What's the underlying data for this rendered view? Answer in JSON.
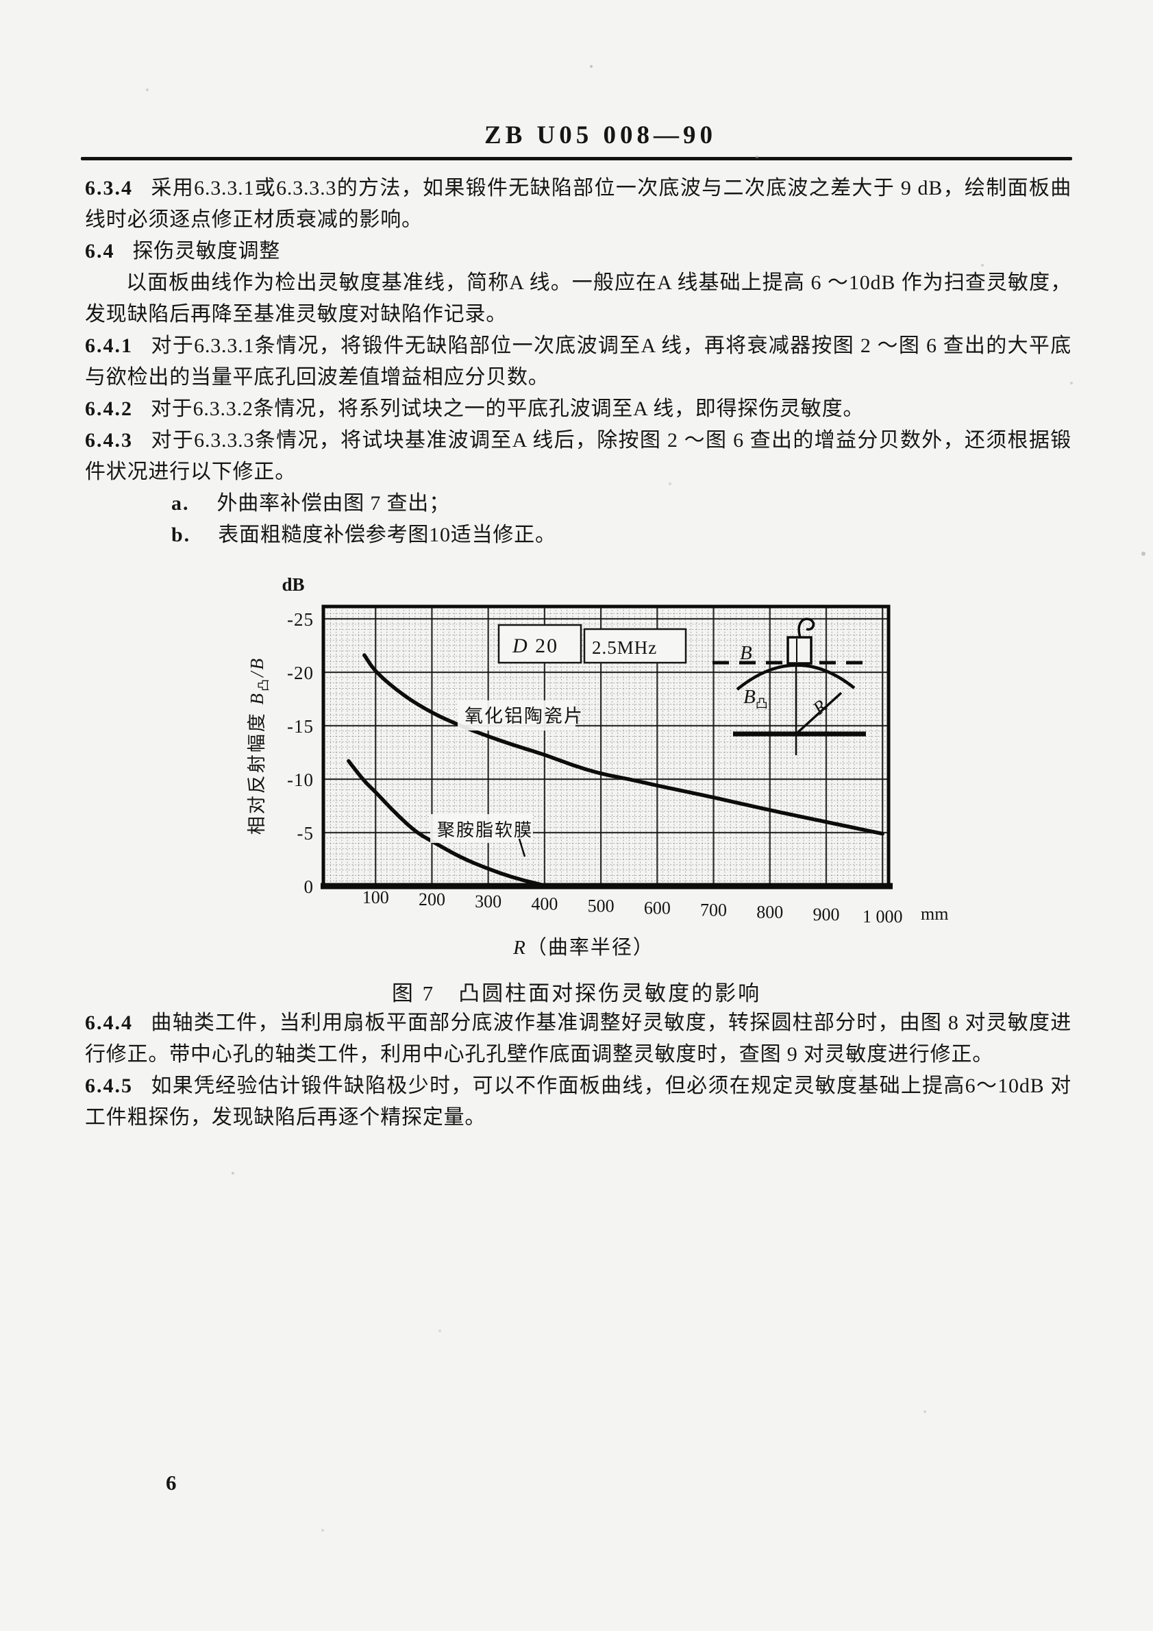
{
  "page": {
    "header_title": "ZB U05 008—90",
    "page_number": "6"
  },
  "colors": {
    "paper": "#f4f4f3",
    "ink": "#161616"
  },
  "content": {
    "s634": {
      "num": "6.3.4",
      "text": "采用6.3.3.1或6.3.3.3的方法，如果锻件无缺陷部位一次底波与二次底波之差大于 9 dB，绘制面板曲线时必须逐点修正材质衰减的影响。"
    },
    "s64": {
      "num": "6.4",
      "text": "探伤灵敏度调整"
    },
    "s64_intro": {
      "text": "以面板曲线作为检出灵敏度基准线，简称A 线。一般应在A 线基础上提高 6 ～10dB 作为扫查灵敏度，发现缺陷后再降至基准灵敏度对缺陷作记录。"
    },
    "s641": {
      "num": "6.4.1",
      "text": "对于6.3.3.1条情况，将锻件无缺陷部位一次底波调至A 线，再将衰减器按图 2 ～图 6 查出的大平底与欲检出的当量平底孔回波差值增益相应分贝数。"
    },
    "s642": {
      "num": "6.4.2",
      "text": "对于6.3.3.2条情况，将系列试块之一的平底孔波调至A 线，即得探伤灵敏度。"
    },
    "s643": {
      "num": "6.4.3",
      "text": "对于6.3.3.3条情况，将试块基准波调至A 线后，除按图 2 ～图 6 查出的增益分贝数外，还须根据锻件状况进行以下修正。"
    },
    "item_a": {
      "num": "a.",
      "text": "外曲率补偿由图 7 查出；"
    },
    "item_b": {
      "num": "b.",
      "text": "表面粗糙度补偿参考图10适当修正。"
    },
    "s644": {
      "num": "6.4.4",
      "text": "曲轴类工件，当利用扇板平面部分底波作基准调整好灵敏度，转探圆柱部分时，由图 8 对灵敏度进行修正。带中心孔的轴类工件，利用中心孔孔壁作底面调整灵敏度时，查图 9 对灵敏度进行修正。"
    },
    "s645": {
      "num": "6.4.5",
      "text": "如果凭经验估计锻件缺陷极少时，可以不作面板曲线，但必须在规定灵敏度基础上提高6～10dB 对工件粗探伤，发现缺陷后再逐个精探定量。"
    }
  },
  "figure": {
    "caption": "图 7　凸圆柱面对探伤灵敏度的影响"
  },
  "chart_data": {
    "type": "line",
    "title": "图 7 凸圆柱面对探伤灵敏度的影响",
    "xlabel": "R（曲率半径）",
    "x_unit": "mm",
    "ylabel": "相对反射幅度 B凸/B",
    "y_unit": "dB",
    "xlim": [
      0,
      1010
    ],
    "ylim": [
      0,
      -26
    ],
    "grid": true,
    "legend_position": "inline-labels",
    "x_ticks": [
      100,
      200,
      300,
      400,
      500,
      600,
      700,
      800,
      900,
      1000
    ],
    "x_tick_labels": [
      "100",
      "200",
      "300",
      "400",
      "500",
      "600",
      "700",
      "800",
      "900",
      "1 000"
    ],
    "y_ticks": [
      -25,
      -20,
      -15,
      -10,
      -5,
      0
    ],
    "y_tick_labels": [
      "-25",
      "-20",
      "-15",
      "-10",
      "-5",
      "0"
    ],
    "annotations": [
      "D 20",
      "2.5MHz"
    ],
    "inset": {
      "flat_label": "B",
      "convex_label": "B凸",
      "radius_label": "R"
    },
    "series": [
      {
        "name": "氧化铝陶瓷片",
        "points": [
          [
            80,
            -21.6
          ],
          [
            100,
            -20
          ],
          [
            150,
            -17.8
          ],
          [
            200,
            -16.2
          ],
          [
            250,
            -15
          ],
          [
            300,
            -14
          ],
          [
            350,
            -13.1
          ],
          [
            400,
            -12.3
          ],
          [
            450,
            -11.3
          ],
          [
            500,
            -10.5
          ],
          [
            550,
            -10
          ],
          [
            600,
            -9.4
          ],
          [
            700,
            -8.3
          ],
          [
            800,
            -7.1
          ],
          [
            900,
            -6.0
          ],
          [
            1000,
            -4.9
          ]
        ]
      },
      {
        "name": "聚胺脂软膜",
        "points": [
          [
            52,
            -11.7
          ],
          [
            80,
            -9.8
          ],
          [
            100,
            -8.8
          ],
          [
            130,
            -7.1
          ],
          [
            170,
            -5.1
          ],
          [
            200,
            -4.2
          ],
          [
            250,
            -2.7
          ],
          [
            300,
            -1.6
          ],
          [
            350,
            -0.7
          ],
          [
            400,
            -0.05
          ]
        ]
      }
    ]
  }
}
